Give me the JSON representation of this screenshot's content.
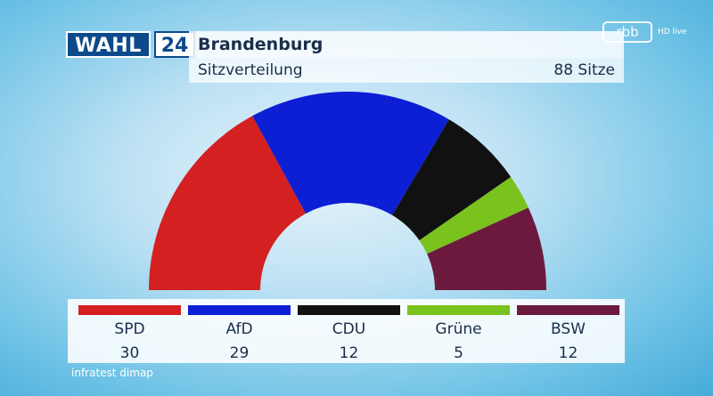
{
  "header": {
    "logo_word": "WAHL",
    "logo_number": "24",
    "title": "Brandenburg",
    "subtitle": "Sitzverteilung",
    "seats_total_label": "88 Sitze"
  },
  "broadcaster": {
    "logo_text": "rbb",
    "live_label": "HD live"
  },
  "source": "infratest dimap",
  "chart_data": {
    "type": "pie",
    "subtype": "parliament-semicircle",
    "title": "Sitzverteilung",
    "total": 88,
    "categories": [
      "SPD",
      "AfD",
      "CDU",
      "Grüne",
      "BSW"
    ],
    "values": [
      30,
      29,
      12,
      5,
      12
    ],
    "colors": [
      "#d42020",
      "#0d1fd4",
      "#111111",
      "#7ac21d",
      "#6b1a3d"
    ]
  }
}
